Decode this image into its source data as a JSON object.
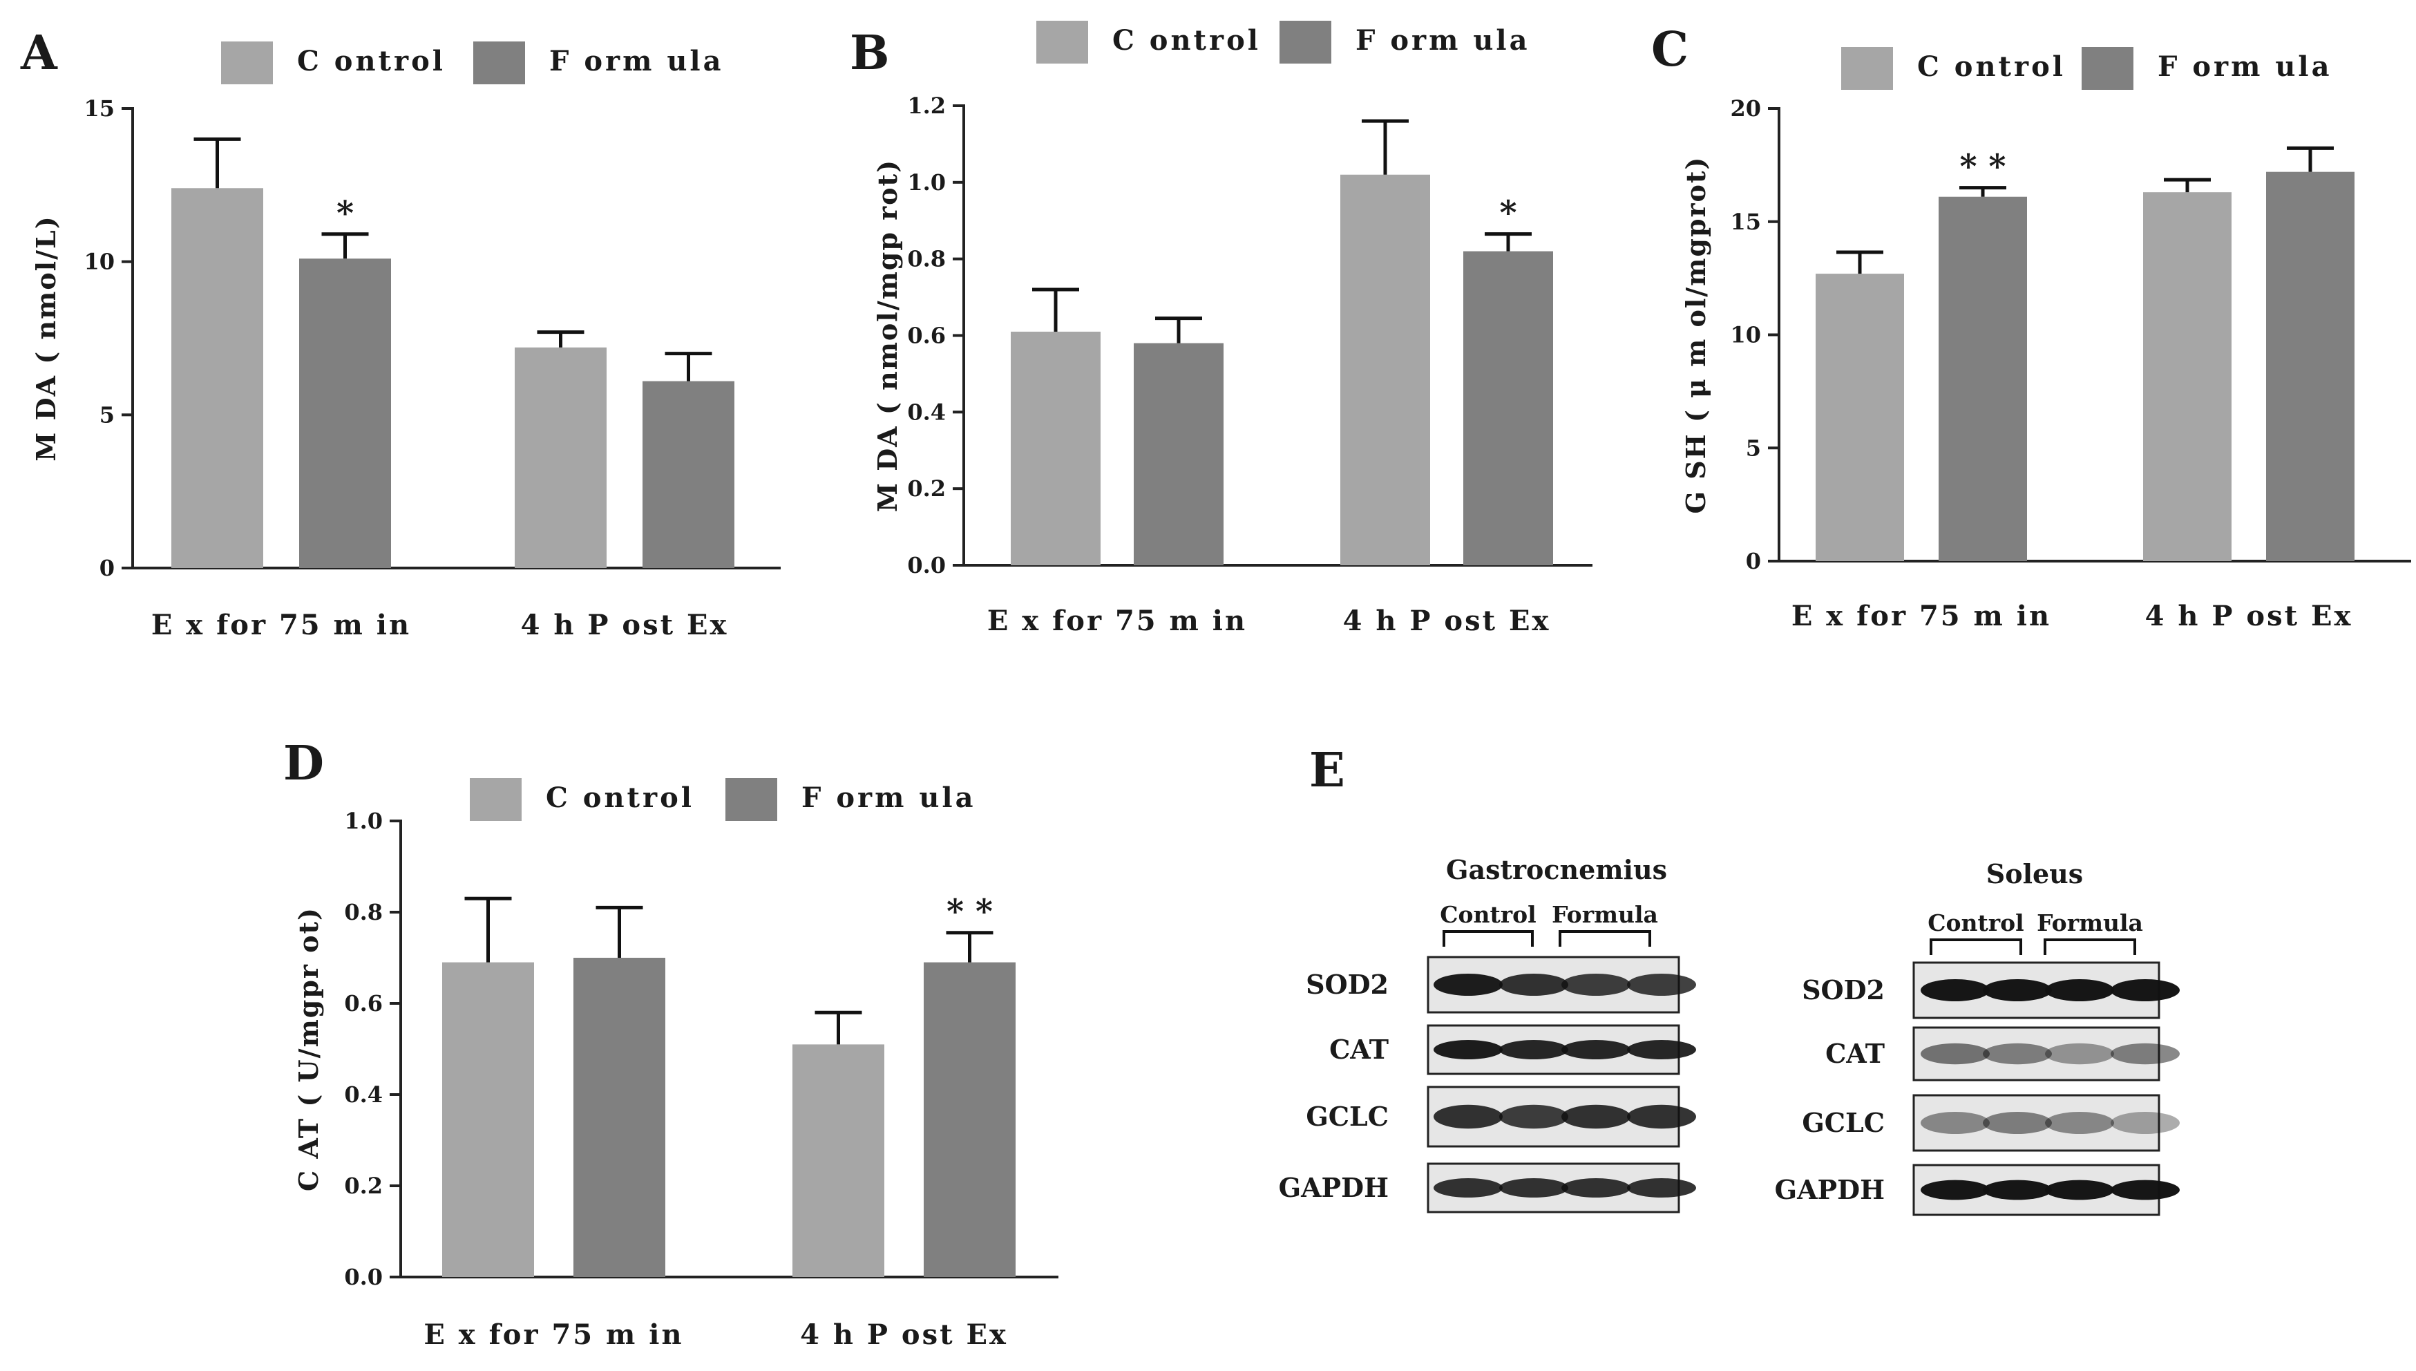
{
  "chart_data": [
    {
      "type": "bar",
      "panel": "A",
      "categories": [
        "E x  for  75  m in",
        "4  h  P ost  Ex"
      ],
      "series": [
        {
          "name": "C ontrol",
          "color": "#a6a6a6",
          "values": [
            12.4,
            7.2
          ],
          "errors": [
            1.6,
            0.5
          ],
          "sig": [
            "",
            ""
          ]
        },
        {
          "name": "F orm ula",
          "color": "#808080",
          "values": [
            10.1,
            6.1
          ],
          "errors": [
            0.8,
            0.9
          ],
          "sig": [
            "*",
            ""
          ]
        }
      ],
      "ylabel": "M DA  ( nmol/L)",
      "ylim": [
        0,
        15
      ],
      "yticks": [
        0,
        5,
        10,
        15
      ],
      "ytick_labels": [
        "0",
        "5",
        "10",
        "15"
      ]
    },
    {
      "type": "bar",
      "panel": "B",
      "categories": [
        "E x  for  75  m in",
        "4  h  P ost  Ex"
      ],
      "series": [
        {
          "name": "C ontrol",
          "color": "#a6a6a6",
          "values": [
            0.61,
            1.02
          ],
          "errors": [
            0.11,
            0.14
          ],
          "sig": [
            "",
            ""
          ]
        },
        {
          "name": "F orm ula",
          "color": "#808080",
          "values": [
            0.58,
            0.82
          ],
          "errors": [
            0.065,
            0.045
          ],
          "sig": [
            "",
            "*"
          ]
        }
      ],
      "ylabel": "M DA  ( nmol/mgp rot)",
      "ylim": [
        0,
        1.2
      ],
      "yticks": [
        0,
        0.2,
        0.4,
        0.6,
        0.8,
        1.0,
        1.2
      ],
      "ytick_labels": [
        "0.0",
        "0.2",
        "0.4",
        "0.6",
        "0.8",
        "1.0",
        "1.2"
      ]
    },
    {
      "type": "bar",
      "panel": "C",
      "categories": [
        "E x  for  75  m in",
        "4  h  P ost  Ex"
      ],
      "series": [
        {
          "name": "C ontrol",
          "color": "#a6a6a6",
          "values": [
            12.7,
            16.3
          ],
          "errors": [
            0.95,
            0.55
          ],
          "sig": [
            "",
            ""
          ]
        },
        {
          "name": "F orm ula",
          "color": "#808080",
          "values": [
            16.1,
            17.2
          ],
          "errors": [
            0.4,
            1.05
          ],
          "sig": [
            "* *",
            ""
          ]
        }
      ],
      "ylabel": "G SH  ( μ m ol/mgprot)",
      "ylim": [
        0,
        20
      ],
      "yticks": [
        0,
        5,
        10,
        15,
        20
      ],
      "ytick_labels": [
        "0",
        "5",
        "10",
        "15",
        "20"
      ]
    },
    {
      "type": "bar",
      "panel": "D",
      "categories": [
        "E x  for  75  m in",
        "4  h  P ost  Ex"
      ],
      "series": [
        {
          "name": "C ontrol",
          "color": "#a6a6a6",
          "values": [
            0.69,
            0.51
          ],
          "errors": [
            0.14,
            0.07
          ],
          "sig": [
            "",
            ""
          ]
        },
        {
          "name": "F orm ula",
          "color": "#808080",
          "values": [
            0.7,
            0.69
          ],
          "errors": [
            0.11,
            0.065
          ],
          "sig": [
            "",
            "* *"
          ]
        }
      ],
      "ylabel": "C AT  ( U/mgpr ot)",
      "ylim": [
        0,
        1.0
      ],
      "yticks": [
        0,
        0.2,
        0.4,
        0.6,
        0.8,
        1.0
      ],
      "ytick_labels": [
        "0.0",
        "0.2",
        "0.4",
        "0.6",
        "0.8",
        "1.0"
      ]
    }
  ],
  "western_blot": {
    "panel": "E",
    "tissues": [
      {
        "title": "Gastrocnemius",
        "groups": [
          "Control",
          "Formula"
        ]
      },
      {
        "title": "Soleus",
        "groups": [
          "Control",
          "Formula"
        ]
      }
    ],
    "proteins": [
      "SOD2",
      "CAT",
      "GCLC",
      "GAPDH"
    ]
  }
}
